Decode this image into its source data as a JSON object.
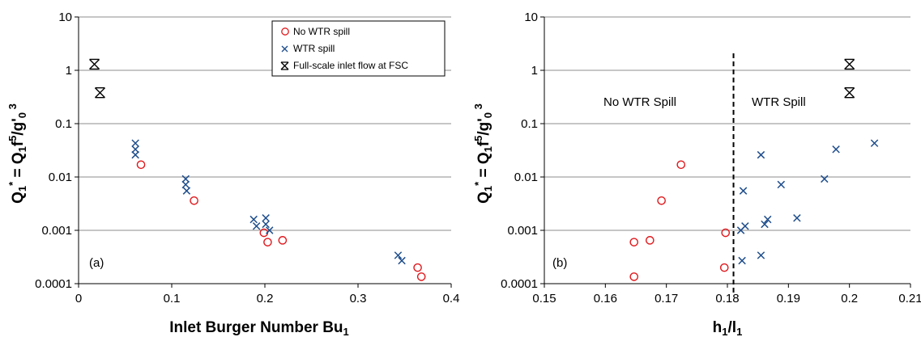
{
  "colors": {
    "no_spill": "#e0191d",
    "spill": "#1f4e8c",
    "full_scale": "#000000",
    "grid": "#8c8c8c"
  },
  "legend": {
    "items": [
      {
        "label": "No WTR spill",
        "marker": "circle",
        "color": "#e0191d"
      },
      {
        "label": "WTR spill",
        "marker": "x",
        "color": "#1f4e8c"
      },
      {
        "label": "Full-scale inlet flow at FSC",
        "marker": "asterisk",
        "color": "#000000"
      }
    ]
  },
  "chart_data": [
    {
      "type": "scatter",
      "panel_label": "(a)",
      "xlabel": "Inlet Burger Number Bu",
      "xlabel_sub": "1",
      "ylabel": "Q1* = Q1 f5/g'0 3",
      "xlim": [
        0,
        0.4
      ],
      "x_ticks": [
        "0",
        "0.1",
        "0.2",
        "0.3",
        "0.4"
      ],
      "x_tick_values": [
        0,
        0.1,
        0.2,
        0.3,
        0.4
      ],
      "ylim": [
        0.0001,
        10
      ],
      "y_scale": "log",
      "y_ticks": [
        "0.0001",
        "0.001",
        "0.01",
        "0.1",
        "1",
        "10"
      ],
      "y_tick_values": [
        0.0001,
        0.001,
        0.01,
        0.1,
        1,
        10
      ],
      "grid": "horizontal",
      "legend_position": "top-right",
      "series": [
        {
          "name": "No WTR spill",
          "marker": "circle",
          "points": [
            [
              0.067,
              0.017
            ],
            [
              0.124,
              0.0036
            ],
            [
              0.199,
              0.0009
            ],
            [
              0.203,
              0.0006
            ],
            [
              0.219,
              0.00065
            ],
            [
              0.364,
              0.0002
            ],
            [
              0.368,
              0.000135
            ]
          ]
        },
        {
          "name": "WTR spill",
          "marker": "x",
          "points": [
            [
              0.061,
              0.043
            ],
            [
              0.061,
              0.033
            ],
            [
              0.061,
              0.026
            ],
            [
              0.115,
              0.0092
            ],
            [
              0.115,
              0.0072
            ],
            [
              0.116,
              0.0055
            ],
            [
              0.188,
              0.0016
            ],
            [
              0.191,
              0.0012
            ],
            [
              0.201,
              0.0017
            ],
            [
              0.201,
              0.0013
            ],
            [
              0.205,
              0.001
            ],
            [
              0.343,
              0.00034
            ],
            [
              0.347,
              0.00027
            ]
          ]
        },
        {
          "name": "Full-scale inlet flow at FSC",
          "marker": "asterisk",
          "points": [
            [
              0.017,
              1.3
            ],
            [
              0.023,
              0.38
            ]
          ]
        }
      ]
    },
    {
      "type": "scatter",
      "panel_label": "(b)",
      "xlabel": "h1/l1",
      "ylabel": "Q1* = Q1 f5/g'0 3",
      "xlim": [
        0.15,
        0.21
      ],
      "x_ticks": [
        "0.15",
        "0.16",
        "0.17",
        "0.18",
        "0.19",
        "0.2",
        "0.21"
      ],
      "x_tick_values": [
        0.15,
        0.16,
        0.17,
        0.18,
        0.19,
        0.2,
        0.21
      ],
      "ylim": [
        0.0001,
        10
      ],
      "y_scale": "log",
      "y_ticks": [
        "0.0001",
        "0.001",
        "0.01",
        "0.1",
        "1",
        "10"
      ],
      "y_tick_values": [
        0.0001,
        0.001,
        0.01,
        0.1,
        1,
        10
      ],
      "grid": "horizontal",
      "threshold_x": 0.181,
      "annotations": {
        "left": "No WTR Spill",
        "right": "WTR Spill"
      },
      "series": [
        {
          "name": "No WTR spill",
          "marker": "circle",
          "points": [
            [
              0.1647,
              0.0006
            ],
            [
              0.1647,
              0.000135
            ],
            [
              0.1673,
              0.00065
            ],
            [
              0.1692,
              0.0036
            ],
            [
              0.1724,
              0.017
            ],
            [
              0.1797,
              0.0009
            ],
            [
              0.1795,
              0.0002
            ]
          ]
        },
        {
          "name": "WTR spill",
          "marker": "x",
          "points": [
            [
              0.1822,
              0.001
            ],
            [
              0.1826,
              0.0055
            ],
            [
              0.1824,
              0.00027
            ],
            [
              0.1829,
              0.0012
            ],
            [
              0.1855,
              0.026
            ],
            [
              0.1855,
              0.00034
            ],
            [
              0.1861,
              0.0013
            ],
            [
              0.1866,
              0.0016
            ],
            [
              0.1888,
              0.0072
            ],
            [
              0.1914,
              0.0017
            ],
            [
              0.1959,
              0.0092
            ],
            [
              0.1978,
              0.033
            ],
            [
              0.2041,
              0.043
            ]
          ]
        },
        {
          "name": "Full-scale inlet flow at FSC",
          "marker": "asterisk",
          "points": [
            [
              0.2,
              1.3
            ],
            [
              0.2,
              0.38
            ]
          ]
        }
      ]
    }
  ]
}
